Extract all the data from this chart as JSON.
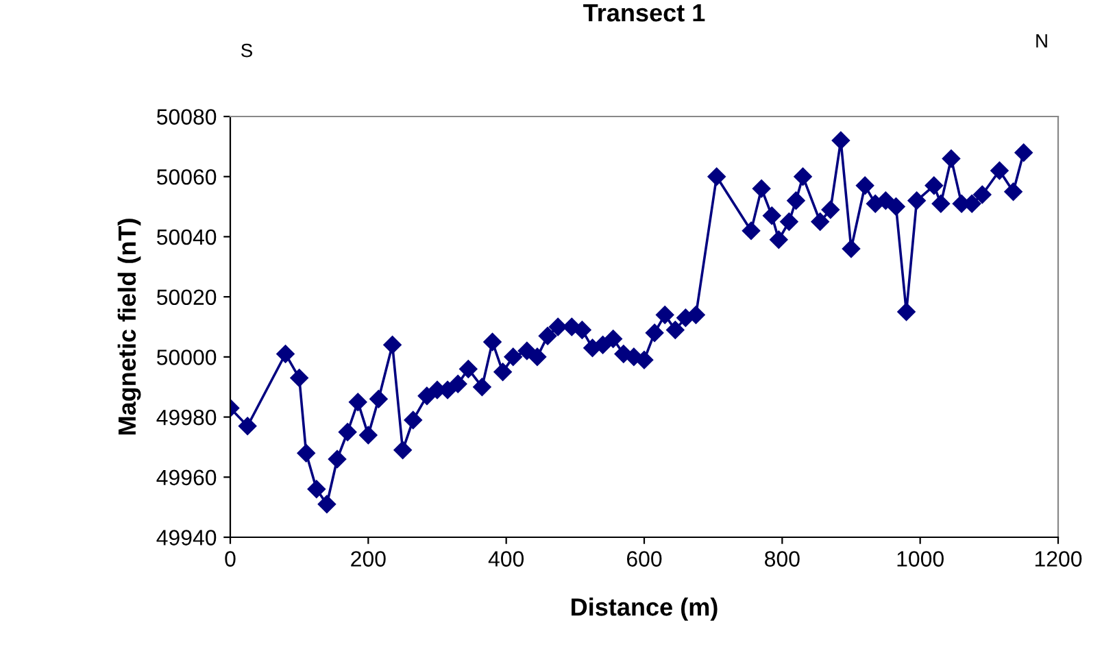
{
  "chart_data": {
    "type": "line",
    "title": "Transect 1",
    "xlabel": "Distance (m)",
    "ylabel": "Magnetic field (nT)",
    "annotations": [
      "S",
      "N"
    ],
    "x": [
      0,
      25,
      80,
      100,
      110,
      125,
      140,
      155,
      170,
      185,
      200,
      215,
      235,
      250,
      265,
      285,
      300,
      315,
      330,
      345,
      365,
      380,
      395,
      410,
      430,
      445,
      460,
      475,
      495,
      510,
      525,
      540,
      555,
      570,
      585,
      600,
      615,
      630,
      645,
      660,
      675,
      705,
      755,
      770,
      785,
      795,
      810,
      820,
      830,
      855,
      870,
      885,
      900,
      920,
      935,
      950,
      965,
      980,
      995,
      1020,
      1030,
      1045,
      1060,
      1075,
      1090,
      1115,
      1135,
      1150
    ],
    "series": [
      {
        "color": "#000080",
        "values": [
          49983,
          49977,
          50001,
          49993,
          49968,
          49956,
          49951,
          49966,
          49975,
          49985,
          49974,
          49986,
          50004,
          49969,
          49979,
          49987,
          49989,
          49989,
          49991,
          49996,
          49990,
          50005,
          49995,
          50000,
          50002,
          50000,
          50007,
          50010,
          50010,
          50009,
          50003,
          50004,
          50006,
          50001,
          50000,
          49999,
          50008,
          50014,
          50009,
          50013,
          50014,
          50060,
          50042,
          50056,
          50047,
          50039,
          50045,
          50052,
          50060,
          50045,
          50049,
          50072,
          50036,
          50057,
          50051,
          50052,
          50050,
          50015,
          50052,
          50057,
          50051,
          50066,
          50051,
          50051,
          50054,
          50062,
          50055,
          50068
        ]
      }
    ],
    "xlim": [
      0,
      1200
    ],
    "xticks": [
      0,
      200,
      400,
      600,
      800,
      1000,
      1200
    ],
    "ylim": [
      49940,
      50080
    ],
    "yticks": [
      49940,
      49960,
      49980,
      50000,
      50020,
      50040,
      50060,
      50080
    ],
    "grid": false,
    "legend": false,
    "marker": "diamond",
    "line_style": "solid"
  }
}
